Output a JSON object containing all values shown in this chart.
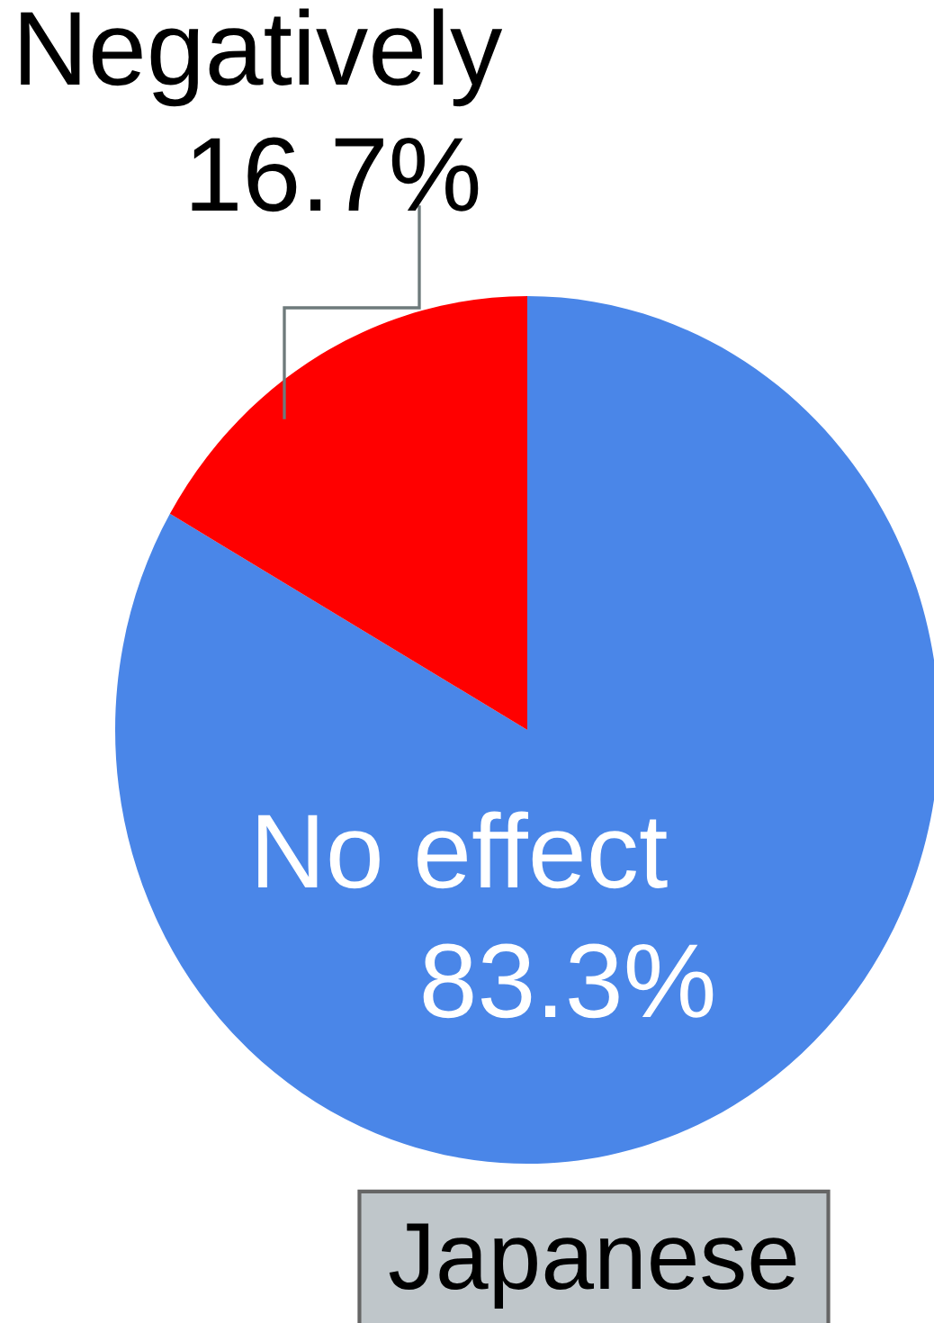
{
  "chart_data": {
    "type": "pie",
    "title": "Japanese",
    "categories": [
      "No effect",
      "Negatively"
    ],
    "values": [
      83.3,
      16.7
    ],
    "colors": [
      "#4a86e8",
      "#ff0000"
    ],
    "value_labels": [
      "83.3%",
      "16.7%"
    ]
  }
}
